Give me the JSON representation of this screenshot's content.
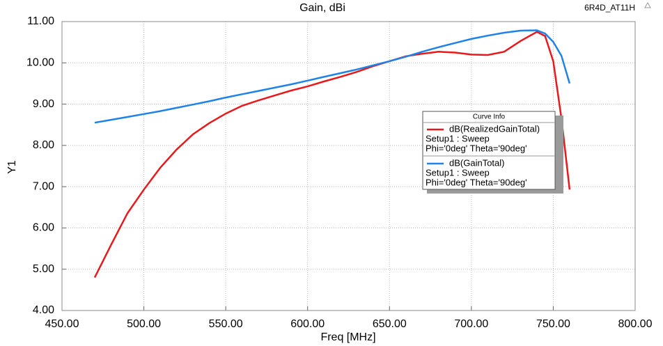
{
  "chart_data": {
    "type": "line",
    "title": "Gain, dBi",
    "design": "6R4D_AT11H",
    "x_label": "Freq [MHz]",
    "y_label": "Y1",
    "x": [
      470,
      480,
      490,
      500,
      510,
      520,
      530,
      540,
      550,
      560,
      570,
      580,
      590,
      600,
      610,
      620,
      630,
      640,
      650,
      660,
      670,
      680,
      690,
      700,
      710,
      720,
      730,
      740,
      745,
      750,
      755,
      760
    ],
    "series": [
      {
        "name": "dB(RealizedGainTotal)",
        "setup": "Setup1 : Sweep",
        "variation": "Phi='0deg' Theta='90deg'",
        "color": "#e8191c",
        "values": [
          4.8,
          5.59,
          6.36,
          6.93,
          7.46,
          7.9,
          8.27,
          8.54,
          8.77,
          8.96,
          9.09,
          9.21,
          9.33,
          9.43,
          9.55,
          9.66,
          9.78,
          9.92,
          10.04,
          10.16,
          10.22,
          10.27,
          10.25,
          10.2,
          10.19,
          10.27,
          10.53,
          10.75,
          10.65,
          10.04,
          8.65,
          6.93
        ]
      },
      {
        "name": "dB(GainTotal)",
        "setup": "Setup1 : Sweep",
        "variation": "Phi='0deg' Theta='90deg'",
        "color": "#1e82e6",
        "values": [
          8.55,
          8.62,
          8.69,
          8.76,
          8.83,
          8.91,
          8.99,
          9.07,
          9.16,
          9.24,
          9.32,
          9.4,
          9.48,
          9.57,
          9.66,
          9.75,
          9.84,
          9.94,
          10.04,
          10.15,
          10.27,
          10.38,
          10.48,
          10.58,
          10.66,
          10.73,
          10.78,
          10.79,
          10.71,
          10.51,
          10.17,
          9.5
        ]
      }
    ],
    "legend_title": "Curve Info",
    "xlim": [
      450,
      800
    ],
    "ylim": [
      4,
      11
    ],
    "xticks": [
      {
        "value": 450,
        "label": "450.00"
      },
      {
        "value": 500,
        "label": "500.00"
      },
      {
        "value": 550,
        "label": "550.00"
      },
      {
        "value": 600,
        "label": "600.00"
      },
      {
        "value": 650,
        "label": "650.00"
      },
      {
        "value": 700,
        "label": "700.00"
      },
      {
        "value": 750,
        "label": "750.00"
      },
      {
        "value": 800,
        "label": "800.00"
      }
    ],
    "yticks": [
      {
        "value": 4,
        "label": "4.00"
      },
      {
        "value": 5,
        "label": "5.00"
      },
      {
        "value": 6,
        "label": "6.00"
      },
      {
        "value": 7,
        "label": "7.00"
      },
      {
        "value": 8,
        "label": "8.00"
      },
      {
        "value": 9,
        "label": "9.00"
      },
      {
        "value": 10,
        "label": "10.00"
      },
      {
        "value": 11,
        "label": "11.00"
      }
    ],
    "grid": true
  }
}
